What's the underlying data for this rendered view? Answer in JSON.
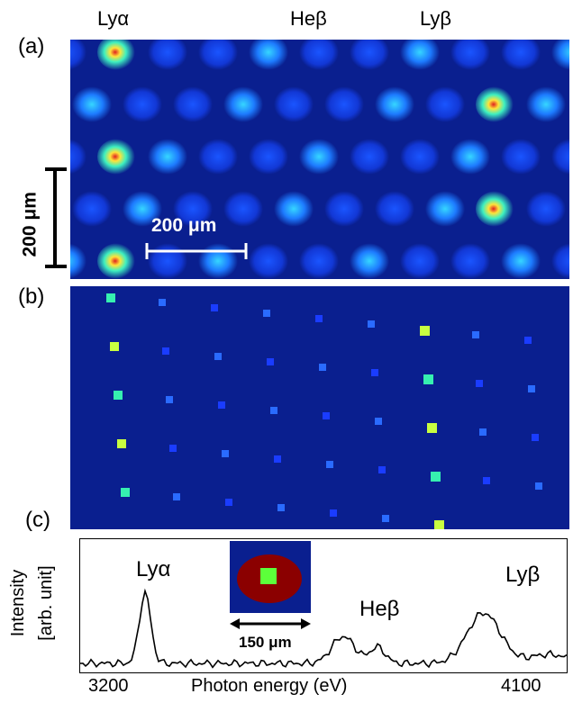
{
  "top_labels": {
    "ly_alpha": "Lyα",
    "he_beta": "Heβ",
    "ly_beta": "Lyβ"
  },
  "panel_labels": {
    "a": "(a)",
    "b": "(b)",
    "c": "(c)"
  },
  "scale": {
    "horizontal": "200 μm",
    "vertical": "200 μm"
  },
  "spectrum": {
    "peak_labels": {
      "ly_alpha": "Lyα",
      "he_beta": "Heβ",
      "ly_beta": "Lyβ"
    },
    "inset_scale": "150 μm",
    "ylabel_line1": "Intensity",
    "ylabel_line2": "[arb. unit]",
    "xlabel": "Photon energy (eV)",
    "xtick_min": "3200",
    "xtick_max": "4100"
  },
  "colors": {
    "background_blue": "#0a1f8f",
    "spot_hot": "#e02020",
    "inset_circle": "#8b0000",
    "inset_square": "#5cff3a"
  }
}
